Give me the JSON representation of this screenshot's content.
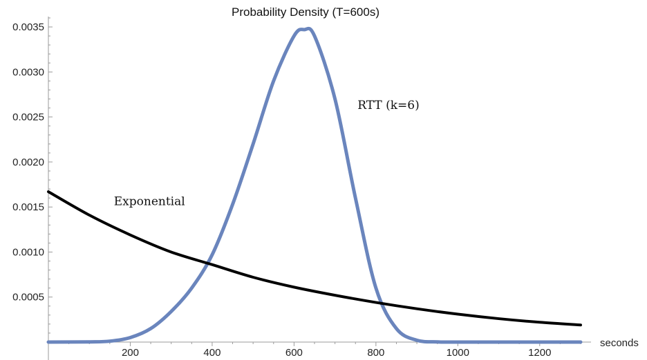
{
  "chart_data": {
    "type": "line",
    "title": "Probability  Density (T=600s)",
    "xlabel": "seconds",
    "ylabel": "",
    "xlim": [
      0,
      1300
    ],
    "ylim": [
      0,
      0.0036
    ],
    "x_ticks": [
      200,
      400,
      600,
      800,
      1000,
      1200
    ],
    "y_ticks": [
      0.0005,
      0.001,
      0.0015,
      0.002,
      0.0025,
      0.003,
      0.0035
    ],
    "y_tick_labels": [
      "0.0005",
      "0.0010",
      "0.0015",
      "0.0020",
      "0.0025",
      "0.0030",
      "0.0035"
    ],
    "x_tick_labels": [
      "200",
      "400",
      "600",
      "800",
      "1000",
      "1200"
    ],
    "grid": false,
    "series": [
      {
        "name": "Exponential",
        "color": "#000000",
        "x": [
          0,
          100,
          200,
          300,
          400,
          500,
          600,
          700,
          800,
          900,
          1000,
          1100,
          1200,
          1300
        ],
        "y": [
          0.00167,
          0.00141,
          0.00119,
          0.001,
          0.00086,
          0.00072,
          0.00061,
          0.00052,
          0.00044,
          0.00037,
          0.00031,
          0.00026,
          0.00022,
          0.00019
        ]
      },
      {
        "name": "RTT (k=6)",
        "color": "#6a85bd",
        "x": [
          0,
          100,
          150,
          200,
          250,
          300,
          350,
          400,
          450,
          500,
          550,
          600,
          625,
          650,
          700,
          750,
          800,
          850,
          900,
          950,
          1000,
          1100,
          1200,
          1300
        ],
        "y": [
          0,
          2e-06,
          1e-05,
          5e-05,
          0.00015,
          0.00034,
          0.0006,
          0.00097,
          0.00153,
          0.0022,
          0.0029,
          0.0034,
          0.00347,
          0.0034,
          0.0027,
          0.0016,
          0.0006,
          0.00015,
          2e-05,
          2e-06,
          0,
          0,
          0,
          0
        ]
      }
    ],
    "annotations": [
      {
        "text": "Exponential",
        "x": 160,
        "y": 0.00152
      },
      {
        "text": "RTT (k=6)",
        "x": 755,
        "y": 0.00259
      }
    ]
  }
}
